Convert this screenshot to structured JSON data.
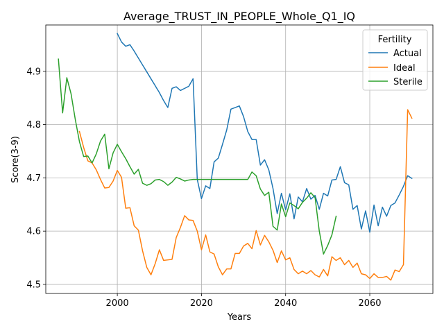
{
  "chart_data": {
    "type": "line",
    "title": "Average_TRUST_IN_PEOPLE_Whole_Q1_IQ",
    "xlabel": "Years",
    "ylabel": "Score(3-9)",
    "xlim": [
      1983,
      2075
    ],
    "ylim": [
      4.483,
      4.987
    ],
    "xticks": [
      2000,
      2020,
      2040,
      2060
    ],
    "yticks": [
      4.5,
      4.6,
      4.7,
      4.8,
      4.9
    ],
    "ytick_labels": [
      "4.5",
      "4.6",
      "4.7",
      "4.8",
      "4.9"
    ],
    "grid": true,
    "legend": {
      "title": "Fertility",
      "position": "top-right"
    },
    "series": [
      {
        "name": "Actual",
        "color": "#1f77b4",
        "x": [
          2000,
          2001,
          2002,
          2003,
          2004,
          2005,
          2006,
          2007,
          2008,
          2009,
          2010,
          2011,
          2012,
          2013,
          2014,
          2015,
          2016,
          2017,
          2018,
          2019,
          2020,
          2021,
          2022,
          2023,
          2024,
          2025,
          2026,
          2027,
          2028,
          2029,
          2030,
          2031,
          2032,
          2033,
          2034,
          2035,
          2036,
          2037,
          2038,
          2039,
          2040,
          2041,
          2042,
          2043,
          2044,
          2045,
          2046,
          2047,
          2048,
          2049,
          2050,
          2051,
          2052,
          2053,
          2054,
          2055,
          2056,
          2057,
          2058,
          2059,
          2060,
          2061,
          2062,
          2063,
          2064,
          2065,
          2066,
          2067,
          2068,
          2069,
          2070
        ],
        "y": [
          4.971,
          4.955,
          4.947,
          4.95,
          4.938,
          4.925,
          4.912,
          4.899,
          4.886,
          4.873,
          4.86,
          4.845,
          4.832,
          4.868,
          4.871,
          4.864,
          4.868,
          4.872,
          4.886,
          4.697,
          4.661,
          4.685,
          4.68,
          4.73,
          4.737,
          4.763,
          4.79,
          4.829,
          4.832,
          4.835,
          4.815,
          4.787,
          4.772,
          4.772,
          4.724,
          4.734,
          4.715,
          4.68,
          4.633,
          4.671,
          4.64,
          4.67,
          4.623,
          4.664,
          4.655,
          4.68,
          4.66,
          4.667,
          4.641,
          4.671,
          4.666,
          4.696,
          4.697,
          4.721,
          4.691,
          4.687,
          4.641,
          4.648,
          4.604,
          4.638,
          4.598,
          4.649,
          4.61,
          4.645,
          4.628,
          4.648,
          4.653,
          4.668,
          4.684,
          4.704,
          4.699
        ]
      },
      {
        "name": "Ideal",
        "color": "#ff7f0e",
        "x": [
          1991,
          1992,
          1993,
          1994,
          1995,
          1996,
          1997,
          1998,
          1999,
          2000,
          2001,
          2002,
          2003,
          2004,
          2005,
          2006,
          2007,
          2008,
          2009,
          2010,
          2011,
          2012,
          2013,
          2014,
          2015,
          2016,
          2017,
          2018,
          2019,
          2020,
          2021,
          2022,
          2023,
          2024,
          2025,
          2026,
          2027,
          2028,
          2029,
          2030,
          2031,
          2032,
          2033,
          2034,
          2035,
          2036,
          2037,
          2038,
          2039,
          2040,
          2041,
          2042,
          2043,
          2044,
          2045,
          2046,
          2047,
          2048,
          2049,
          2050,
          2051,
          2052,
          2053,
          2054,
          2055,
          2056,
          2057,
          2058,
          2059,
          2060,
          2061,
          2062,
          2063,
          2064,
          2065,
          2066,
          2067,
          2068,
          2069,
          2070
        ],
        "y": [
          4.787,
          4.757,
          4.732,
          4.728,
          4.715,
          4.697,
          4.681,
          4.682,
          4.694,
          4.714,
          4.701,
          4.643,
          4.644,
          4.61,
          4.602,
          4.563,
          4.532,
          4.518,
          4.539,
          4.565,
          4.545,
          4.546,
          4.547,
          4.588,
          4.607,
          4.629,
          4.621,
          4.62,
          4.6,
          4.565,
          4.593,
          4.561,
          4.557,
          4.533,
          4.518,
          4.529,
          4.529,
          4.558,
          4.558,
          4.572,
          4.577,
          4.567,
          4.601,
          4.574,
          4.592,
          4.58,
          4.564,
          4.541,
          4.563,
          4.546,
          4.55,
          4.528,
          4.52,
          4.525,
          4.52,
          4.526,
          4.518,
          4.514,
          4.528,
          4.516,
          4.552,
          4.545,
          4.55,
          4.537,
          4.545,
          4.532,
          4.54,
          4.52,
          4.518,
          4.511,
          4.52,
          4.513,
          4.513,
          4.515,
          4.508,
          4.527,
          4.524,
          4.537,
          4.828,
          4.812
        ]
      },
      {
        "name": "Sterile",
        "color": "#2ca02c",
        "x": [
          1986,
          1987,
          1988,
          1989,
          1990,
          1991,
          1992,
          1993,
          1994,
          1995,
          1996,
          1997,
          1998,
          1999,
          2000,
          2001,
          2002,
          2003,
          2004,
          2005,
          2006,
          2007,
          2008,
          2009,
          2010,
          2011,
          2012,
          2013,
          2014,
          2015,
          2016,
          2017,
          2018,
          2019,
          2020,
          2021,
          2022,
          2023,
          2024,
          2025,
          2026,
          2027,
          2028,
          2029,
          2030,
          2031,
          2032,
          2033,
          2034,
          2035,
          2036,
          2037,
          2038,
          2039,
          2040,
          2041,
          2042,
          2043,
          2044,
          2045,
          2046,
          2047,
          2048,
          2049,
          2050,
          2051,
          2052
        ],
        "y": [
          4.923,
          4.822,
          4.888,
          4.858,
          4.81,
          4.768,
          4.74,
          4.741,
          4.728,
          4.745,
          4.769,
          4.782,
          4.717,
          4.747,
          4.763,
          4.749,
          4.736,
          4.721,
          4.707,
          4.716,
          4.69,
          4.686,
          4.689,
          4.696,
          4.697,
          4.693,
          4.686,
          4.692,
          4.701,
          4.698,
          4.694,
          4.696,
          4.697,
          4.697,
          4.697,
          4.697,
          4.697,
          4.697,
          4.697,
          4.697,
          4.697,
          4.697,
          4.697,
          4.697,
          4.697,
          4.697,
          4.711,
          4.704,
          4.679,
          4.667,
          4.673,
          4.609,
          4.602,
          4.651,
          4.627,
          4.653,
          4.648,
          4.642,
          4.654,
          4.662,
          4.672,
          4.663,
          4.6,
          4.557,
          4.573,
          4.593,
          4.628
        ]
      }
    ]
  }
}
